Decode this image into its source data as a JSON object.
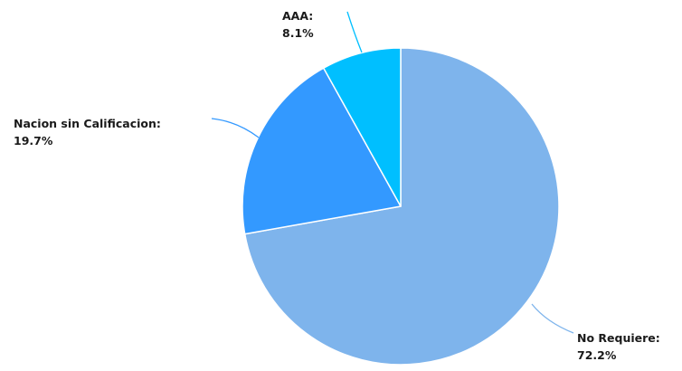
{
  "chart_data": {
    "type": "pie",
    "title": "",
    "slices": [
      {
        "label": "No Requiere",
        "value": 72.2,
        "value_text": "72.2%",
        "color": "#7eb4ec"
      },
      {
        "label": "Nacion sin Calificacion",
        "value": 19.7,
        "value_text": "19.7%",
        "color": "#3399ff"
      },
      {
        "label": "AAA",
        "value": 8.1,
        "value_text": "8.1%",
        "color": "#00bfff"
      }
    ],
    "start_angle_deg": 0,
    "direction": "clockwise",
    "legend": "none",
    "data_labels": "outside with leader lines"
  }
}
